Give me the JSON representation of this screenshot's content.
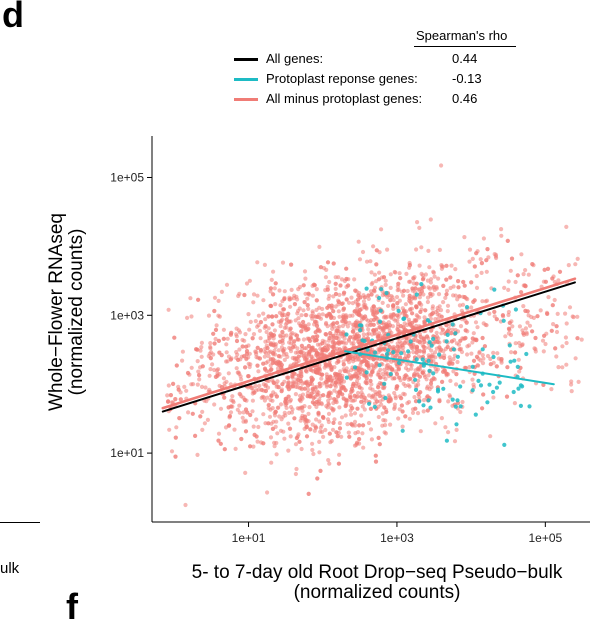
{
  "panel": {
    "letter": "d",
    "next_letter": "f",
    "cut_text": "ulk"
  },
  "legend": {
    "header": "Spearman's rho",
    "entries": [
      {
        "label": "All genes:",
        "value": "0.44",
        "color": "#000000"
      },
      {
        "label": "Protoplast reponse genes:",
        "value": "-0.13",
        "color": "#1ebbc4"
      },
      {
        "label": "All minus protoplast genes:",
        "value": "0.46",
        "color": "#f07c76"
      }
    ]
  },
  "chart_data": {
    "type": "scatter",
    "title": "",
    "xlabel_line1": "5- to 7-day old Root Drop−seq Pseudo−bulk",
    "xlabel_line2": "(normalized counts)",
    "ylabel_line1": "Whole−Flower RNAseq",
    "ylabel_line2": "(normalized counts)",
    "x_scale": "log10",
    "y_scale": "log10",
    "xlim": [
      0.5,
      400000
    ],
    "ylim": [
      1,
      400000
    ],
    "x_ticks": [
      10,
      1000,
      100000
    ],
    "x_tick_labels": [
      "1e+01",
      "1e+03",
      "1e+05"
    ],
    "y_ticks": [
      10,
      1000,
      100000
    ],
    "y_tick_labels": [
      "1e+01",
      "1e+03",
      "1e+05"
    ],
    "grid": false,
    "series": [
      {
        "name": "All genes",
        "color": "#000000",
        "fit_line": {
          "x": [
            0.7,
            250000
          ],
          "y": [
            40,
            3000
          ]
        }
      },
      {
        "name": "Protoplast reponse genes",
        "color": "#1ebbc4",
        "fit_line": {
          "x": [
            200,
            130000
          ],
          "y": [
            300,
            100
          ]
        }
      },
      {
        "name": "All minus protoplast genes",
        "color": "#f07c76",
        "fit_line": {
          "x": [
            0.7,
            250000
          ],
          "y": [
            45,
            3400
          ]
        }
      }
    ]
  }
}
